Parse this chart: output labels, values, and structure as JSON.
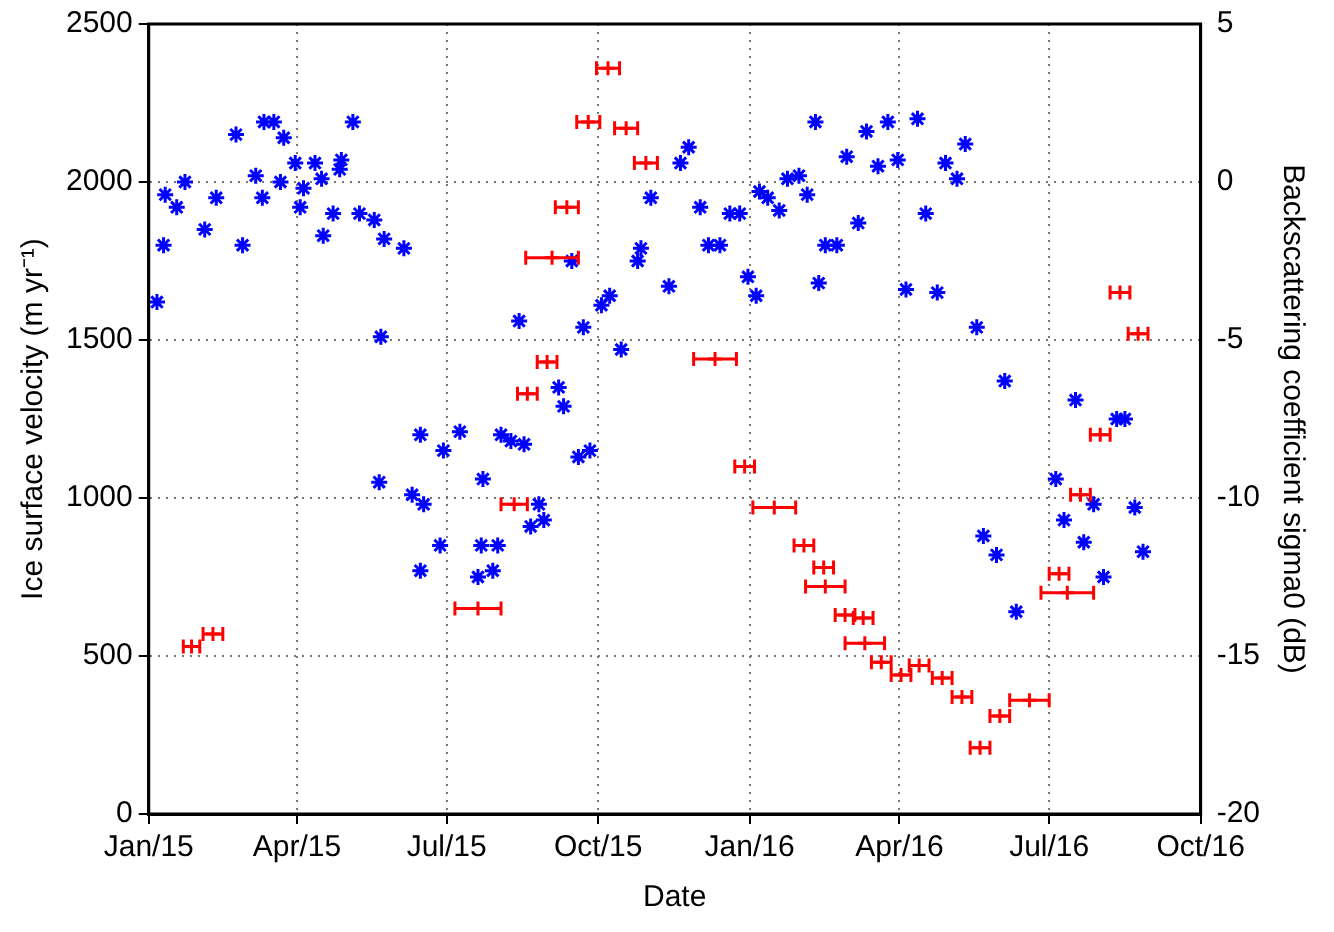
{
  "chart_data": {
    "type": "scatter",
    "xlabel": "Date",
    "ylabel": "Ice surface velocity (m yr⁻¹)",
    "y2label": "Backscattering coefficient sigma0 (dB)",
    "xlim": [
      "2015-01",
      "2016-10"
    ],
    "xticks": [
      {
        "value": "2015-01",
        "label": "Jan/15"
      },
      {
        "value": "2015-04",
        "label": "Apr/15"
      },
      {
        "value": "2015-07",
        "label": "Jul/15"
      },
      {
        "value": "2015-10",
        "label": "Oct/15"
      },
      {
        "value": "2016-01",
        "label": "Jan/16"
      },
      {
        "value": "2016-04",
        "label": "Apr/16"
      },
      {
        "value": "2016-07",
        "label": "Jul/16"
      },
      {
        "value": "2016-10",
        "label": "Oct/16"
      }
    ],
    "ylim": [
      0,
      2500
    ],
    "yticks": [
      0,
      500,
      1000,
      1500,
      2000,
      2500
    ],
    "y2lim": [
      -20,
      5
    ],
    "y2ticks": [
      -20,
      -15,
      -10,
      -5,
      0,
      5
    ],
    "grid": true,
    "series": [
      {
        "color": "#0000ff",
        "marker": "cross",
        "x": [
          "2015-01-06",
          "2015-01-10",
          "2015-01-11",
          "2015-01-18",
          "2015-01-23",
          "2015-02-04",
          "2015-02-11",
          "2015-02-23",
          "2015-02-27",
          "2015-03-07",
          "2015-03-11",
          "2015-03-12",
          "2015-03-18",
          "2015-03-22",
          "2015-03-24",
          "2015-03-31",
          "2015-04-03",
          "2015-04-05",
          "2015-04-12",
          "2015-04-16",
          "2015-04-17",
          "2015-04-23",
          "2015-04-27",
          "2015-04-28",
          "2015-05-05",
          "2015-05-09",
          "2015-05-18",
          "2015-05-21",
          "2015-05-22",
          "2015-05-24",
          "2015-06-05",
          "2015-06-10",
          "2015-06-15",
          "2015-06-15",
          "2015-06-17",
          "2015-06-27",
          "2015-06-29",
          "2015-07-09",
          "2015-07-20",
          "2015-07-22",
          "2015-07-23",
          "2015-07-29",
          "2015-08-01",
          "2015-08-03",
          "2015-08-09",
          "2015-08-14",
          "2015-08-17",
          "2015-08-21",
          "2015-08-26",
          "2015-08-29",
          "2015-09-07",
          "2015-09-10",
          "2015-09-15",
          "2015-09-19",
          "2015-09-22",
          "2015-09-26",
          "2015-10-03",
          "2015-10-08",
          "2015-10-15",
          "2015-10-25",
          "2015-10-27",
          "2015-11-02",
          "2015-11-13",
          "2015-11-20",
          "2015-11-25",
          "2015-12-02",
          "2015-12-07",
          "2015-12-14",
          "2015-12-20",
          "2015-12-26",
          "2015-12-31",
          "2016-01-05",
          "2016-01-07",
          "2016-01-12",
          "2016-01-19",
          "2016-01-24",
          "2016-01-31",
          "2016-02-05",
          "2016-02-10",
          "2016-02-12",
          "2016-02-16",
          "2016-02-23",
          "2016-02-29",
          "2016-03-07",
          "2016-03-12",
          "2016-03-19",
          "2016-03-25",
          "2016-03-31",
          "2016-04-05",
          "2016-04-12",
          "2016-04-17",
          "2016-04-24",
          "2016-04-29",
          "2016-05-06",
          "2016-05-11",
          "2016-05-18",
          "2016-05-22",
          "2016-05-30",
          "2016-06-04",
          "2016-06-11",
          "2016-07-05",
          "2016-07-10",
          "2016-07-17",
          "2016-07-22",
          "2016-07-28",
          "2016-08-03",
          "2016-08-11",
          "2016-08-16",
          "2016-08-22",
          "2016-08-27"
        ],
        "values": [
          1620,
          1800,
          1960,
          1920,
          2000,
          1850,
          1950,
          2150,
          1800,
          2020,
          1950,
          2190,
          2190,
          2000,
          2140,
          2060,
          1920,
          1980,
          2060,
          2010,
          1830,
          1900,
          2040,
          2070,
          2190,
          1900,
          1880,
          1050,
          1510,
          1820,
          1790,
          1010,
          1200,
          770,
          980,
          850,
          1150,
          1210,
          750,
          850,
          1060,
          770,
          850,
          1200,
          1180,
          1560,
          1170,
          910,
          980,
          930,
          1350,
          1290,
          1750,
          1130,
          1540,
          1150,
          1610,
          1640,
          1470,
          1750,
          1790,
          1950,
          1670,
          2060,
          2110,
          1920,
          1800,
          1800,
          1900,
          1900,
          1700,
          1640,
          1970,
          1950,
          1910,
          2010,
          2020,
          1960,
          2190,
          1680,
          1800,
          1800,
          2080,
          1870,
          2160,
          2050,
          2190,
          2070,
          1660,
          2200,
          1900,
          1650,
          2060,
          2010,
          2120,
          1540,
          880,
          820,
          1370,
          640,
          1060,
          930,
          1310,
          860,
          980,
          750,
          1250,
          1250,
          970,
          830
        ]
      },
      {
        "color": "#ff0000",
        "marker": "cross",
        "axis": "y2",
        "x": [
          "2015-01-27",
          "2015-02-09",
          "2015-07-20",
          "2015-08-11",
          "2015-08-19",
          "2015-08-31",
          "2015-09-03",
          "2015-09-12",
          "2015-09-25",
          "2015-10-07",
          "2015-10-18",
          "2015-10-30",
          "2015-12-11",
          "2015-12-29",
          "2016-01-16",
          "2016-02-03",
          "2016-02-15",
          "2016-02-16",
          "2016-02-28",
          "2016-03-10",
          "2016-03-11",
          "2016-03-21",
          "2016-04-02",
          "2016-04-13",
          "2016-04-27",
          "2016-05-09",
          "2016-05-20",
          "2016-06-01",
          "2016-06-19",
          "2016-07-07",
          "2016-07-12",
          "2016-07-20",
          "2016-08-01",
          "2016-08-13",
          "2016-08-24"
        ],
        "values": [
          -14.7,
          -14.3,
          -13.5,
          -10.2,
          -6.7,
          -5.7,
          -2.4,
          -0.8,
          1.9,
          3.6,
          1.7,
          0.6,
          -5.6,
          -9,
          -10.3,
          -11.5,
          -12.2,
          -12.8,
          -13.7,
          -13.8,
          -14.6,
          -15.2,
          -15.6,
          -15.3,
          -15.7,
          -16.3,
          -17.9,
          -16.9,
          -16.4,
          -12.4,
          -13,
          -9.9,
          -8,
          -3.5,
          -4.8
        ],
        "xerrors": [
          5,
          6,
          14,
          8,
          6,
          6,
          16,
          7,
          7,
          7,
          7,
          7,
          13,
          6,
          13,
          6,
          6,
          12,
          6,
          6,
          12,
          6,
          6,
          6,
          6,
          6,
          6,
          6,
          12,
          6,
          16,
          6,
          6,
          6,
          6
        ]
      }
    ]
  }
}
